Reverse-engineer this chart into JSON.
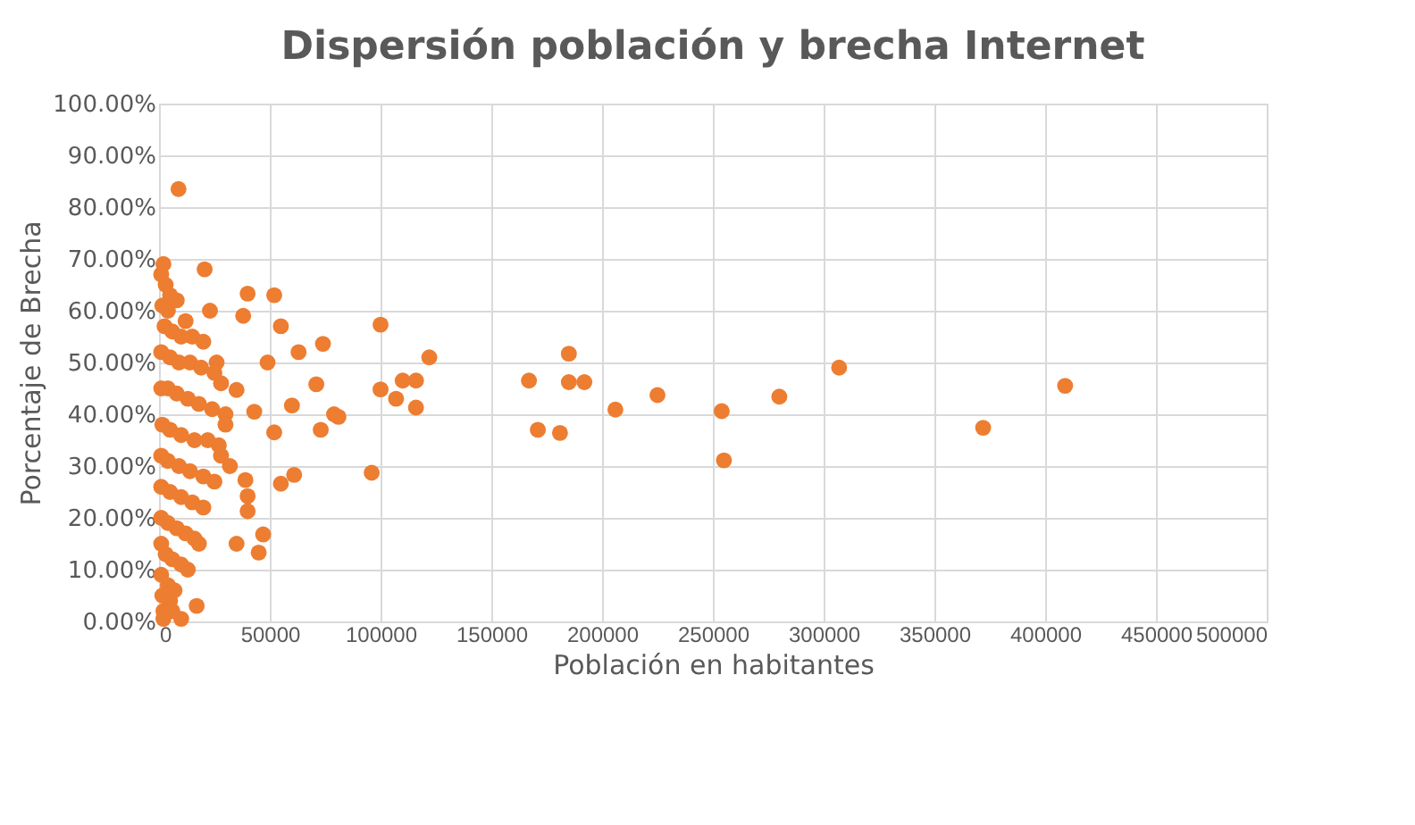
{
  "chart_data": {
    "type": "scatter",
    "title": "Dispersión población y brecha Internet",
    "xlabel": "Población en habitantes",
    "ylabel": "Porcentaje de Brecha",
    "xlim": [
      0,
      500000
    ],
    "xticks": [
      0,
      50000,
      100000,
      150000,
      200000,
      250000,
      300000,
      350000,
      400000,
      450000,
      500000
    ],
    "ylim": [
      0,
      100
    ],
    "yticks": [
      {
        "value": 0,
        "label": "0.00%"
      },
      {
        "value": 10,
        "label": "10.00%"
      },
      {
        "value": 20,
        "label": "20.00%"
      },
      {
        "value": 30,
        "label": "30.00%"
      },
      {
        "value": 40,
        "label": "40.00%"
      },
      {
        "value": 50,
        "label": "50.00%"
      },
      {
        "value": 60,
        "label": "60.00%"
      },
      {
        "value": 70,
        "label": "70.00%"
      },
      {
        "value": 80,
        "label": "80.00%"
      },
      {
        "value": 90,
        "label": "90.00%"
      },
      {
        "value": 100,
        "label": "100.00%"
      }
    ],
    "grid": true,
    "marker": "circle",
    "series": [
      {
        "color": "#ed7d31",
        "x": [
          100000,
          122000,
          100000,
          107000,
          110000,
          116000,
          116000,
          96000,
          81000,
          167000,
          185000,
          185000,
          192000,
          171000,
          181000,
          206000,
          225000,
          254000,
          255000,
          280000,
          307000,
          372000,
          409000,
          8800,
          2000,
          20600,
          40000,
          52000,
          38000,
          23000,
          55000,
          63000,
          74000,
          49000,
          71000,
          79000,
          73000,
          52000,
          43000,
          35000,
          60000,
          61000,
          55000,
          40000,
          40000,
          47000,
          35000,
          45000,
          32000,
          39000,
          18000,
          17000,
          10000,
          2000,
          1000,
          3000,
          5000,
          1500,
          4000,
          8000,
          12000,
          2500,
          6000,
          10000,
          15000,
          20000,
          1000,
          5000,
          9000,
          14000,
          19000,
          25000,
          28000,
          1000,
          4000,
          8000,
          13000,
          18000,
          24000,
          30000,
          1500,
          5000,
          10000,
          16000,
          22000,
          27000,
          1000,
          4000,
          9000,
          14000,
          20000,
          25000,
          1000,
          5000,
          10000,
          15000,
          20000,
          1000,
          4000,
          8000,
          12000,
          16000,
          1000,
          3000,
          6000,
          10000,
          13000,
          1000,
          4000,
          7000,
          1500,
          5000,
          2000,
          6000,
          28000,
          30000,
          26000
        ],
        "values": [
          57.3,
          51,
          44.8,
          43,
          46.5,
          46.5,
          41.3,
          28.7,
          39.5,
          46.5,
          51.7,
          46.2,
          46.2,
          37,
          36.4,
          40.9,
          43.7,
          40.6,
          31.1,
          43.4,
          49,
          37.4,
          45.5,
          83.5,
          69,
          68,
          63.3,
          63,
          59,
          60,
          57,
          52,
          53.6,
          50,
          45.8,
          40,
          37,
          36.5,
          40.5,
          44.7,
          41.7,
          28.3,
          26.6,
          24.2,
          21.3,
          16.8,
          15,
          13.3,
          30,
          27.3,
          15,
          3,
          0.5,
          0.5,
          67,
          65,
          63,
          61,
          60,
          62,
          58,
          57,
          56,
          55,
          55,
          54,
          52,
          51,
          50,
          50,
          49,
          48,
          46,
          45,
          45,
          44,
          43,
          42,
          41,
          40,
          38,
          37,
          36,
          35,
          35,
          34,
          32,
          31,
          30,
          29,
          28,
          27,
          26,
          25,
          24,
          23,
          22,
          20,
          19,
          18,
          17,
          16,
          15,
          13,
          12,
          11,
          10,
          9,
          7,
          6,
          5,
          4,
          2,
          2,
          32,
          38,
          50
        ]
      }
    ]
  }
}
